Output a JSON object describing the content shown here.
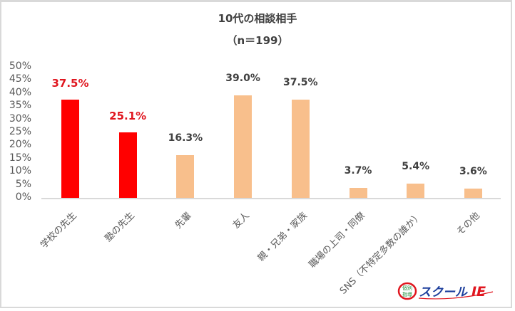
{
  "chart_data": {
    "type": "bar",
    "title": "10代の相談相手",
    "subtitle": "（n＝199）",
    "xlabel": "",
    "ylabel": "",
    "ylim": [
      0,
      50
    ],
    "yticks": [
      "0%",
      "5%",
      "10%",
      "15%",
      "20%",
      "25%",
      "30%",
      "35%",
      "40%",
      "45%",
      "50%"
    ],
    "grid": false,
    "legend": null,
    "categories": [
      "学校の先生",
      "塾の先生",
      "先輩",
      "友人",
      "親・兄弟・家族",
      "職場の上司・同僚",
      "SNS（不特定多数の誰か）",
      "その他"
    ],
    "values": [
      37.5,
      25.1,
      16.3,
      39.0,
      37.5,
      3.7,
      5.4,
      3.6
    ],
    "value_labels": [
      "37.5%",
      "25.1%",
      "16.3%",
      "39.0%",
      "37.5%",
      "3.7%",
      "5.4%",
      "3.6%"
    ],
    "highlighted": [
      true,
      true,
      false,
      false,
      false,
      false,
      false,
      false
    ],
    "colors": {
      "highlight_bar": "#ff0000",
      "normal_bar": "#f8bf8c",
      "highlight_label": "#e0161f",
      "normal_label": "#404040"
    }
  },
  "logo": {
    "badge_top": "個別",
    "badge_bottom": "指導",
    "text": "スクール",
    "mark": "IE"
  }
}
